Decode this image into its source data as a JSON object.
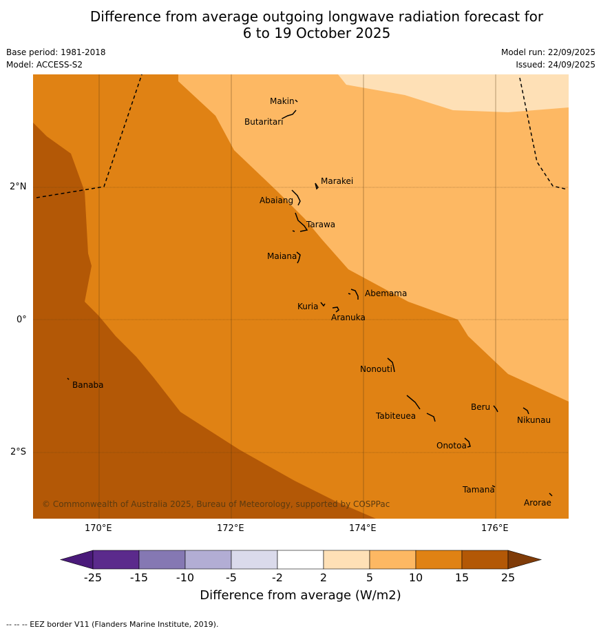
{
  "title": {
    "line1": "Difference from average outgoing longwave radiation forecast for",
    "line2": "6 to 19 October 2025"
  },
  "meta": {
    "base_period": "Base period: 1981-2018",
    "model": "Model: ACCESS-S2",
    "model_run": "Model run: 22/09/2025",
    "issued": "Issued: 24/09/2025"
  },
  "axes": {
    "lat_labels": [
      "2°N",
      "0°",
      "2°S"
    ],
    "lon_labels": [
      "170°E",
      "172°E",
      "174°E",
      "176°E"
    ]
  },
  "places": [
    {
      "name": "Makin"
    },
    {
      "name": "Butaritari"
    },
    {
      "name": "Marakei"
    },
    {
      "name": "Abaiang"
    },
    {
      "name": "Tarawa"
    },
    {
      "name": "Maiana"
    },
    {
      "name": "Abemama"
    },
    {
      "name": "Kuria"
    },
    {
      "name": "Aranuka"
    },
    {
      "name": "Banaba"
    },
    {
      "name": "Nonouti"
    },
    {
      "name": "Beru"
    },
    {
      "name": "Tabiteuea"
    },
    {
      "name": "Nikunau"
    },
    {
      "name": "Onotoa"
    },
    {
      "name": "Tamana"
    },
    {
      "name": "Arorae"
    }
  ],
  "copyright": "© Commonwealth of Australia 2025, Bureau of Meteorology, supported by COSPPac",
  "colorbar": {
    "ticks": [
      "-25",
      "-15",
      "-10",
      "-5",
      "-2",
      "2",
      "5",
      "10",
      "15",
      "25"
    ],
    "colors": [
      "#4a1a7a",
      "#5b2a8c",
      "#8578b3",
      "#b2add4",
      "#dadaeb",
      "#ffffff",
      "#fee0b6",
      "#fdb863",
      "#e08214",
      "#b35806",
      "#7f3b08"
    ],
    "title": "Difference from average (W/m2)"
  },
  "map_colors": {
    "band_15_25": "#b35806",
    "band_10_15": "#e08214",
    "band_5_10": "#fdb863",
    "band_2_5": "#fee0b6"
  },
  "footnote": "--  --  -- EEZ border V11 (Flanders Marine Institute, 2019)."
}
